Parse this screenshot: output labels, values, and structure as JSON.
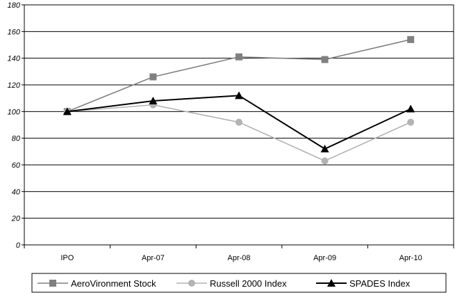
{
  "chart_data": {
    "type": "line",
    "title": "",
    "xlabel": "",
    "ylabel": "",
    "categories": [
      "IPO",
      "Apr-07",
      "Apr-08",
      "Apr-09",
      "Apr-10"
    ],
    "ylim": [
      0,
      180
    ],
    "yticks": [
      0,
      20,
      40,
      60,
      80,
      100,
      120,
      140,
      160,
      180
    ],
    "grid": true,
    "legend_position": "bottom",
    "series": [
      {
        "name": "AeroVironment Stock",
        "values": [
          100,
          126,
          141,
          139,
          154
        ],
        "color": "#808080",
        "marker": "square"
      },
      {
        "name": "Russell 2000 Index",
        "values": [
          100,
          105,
          92,
          63,
          92
        ],
        "color": "#b3b3b3",
        "marker": "circle"
      },
      {
        "name": "SPADES Index",
        "values": [
          100,
          108,
          112,
          72,
          102
        ],
        "color": "#000000",
        "marker": "triangle"
      }
    ]
  }
}
